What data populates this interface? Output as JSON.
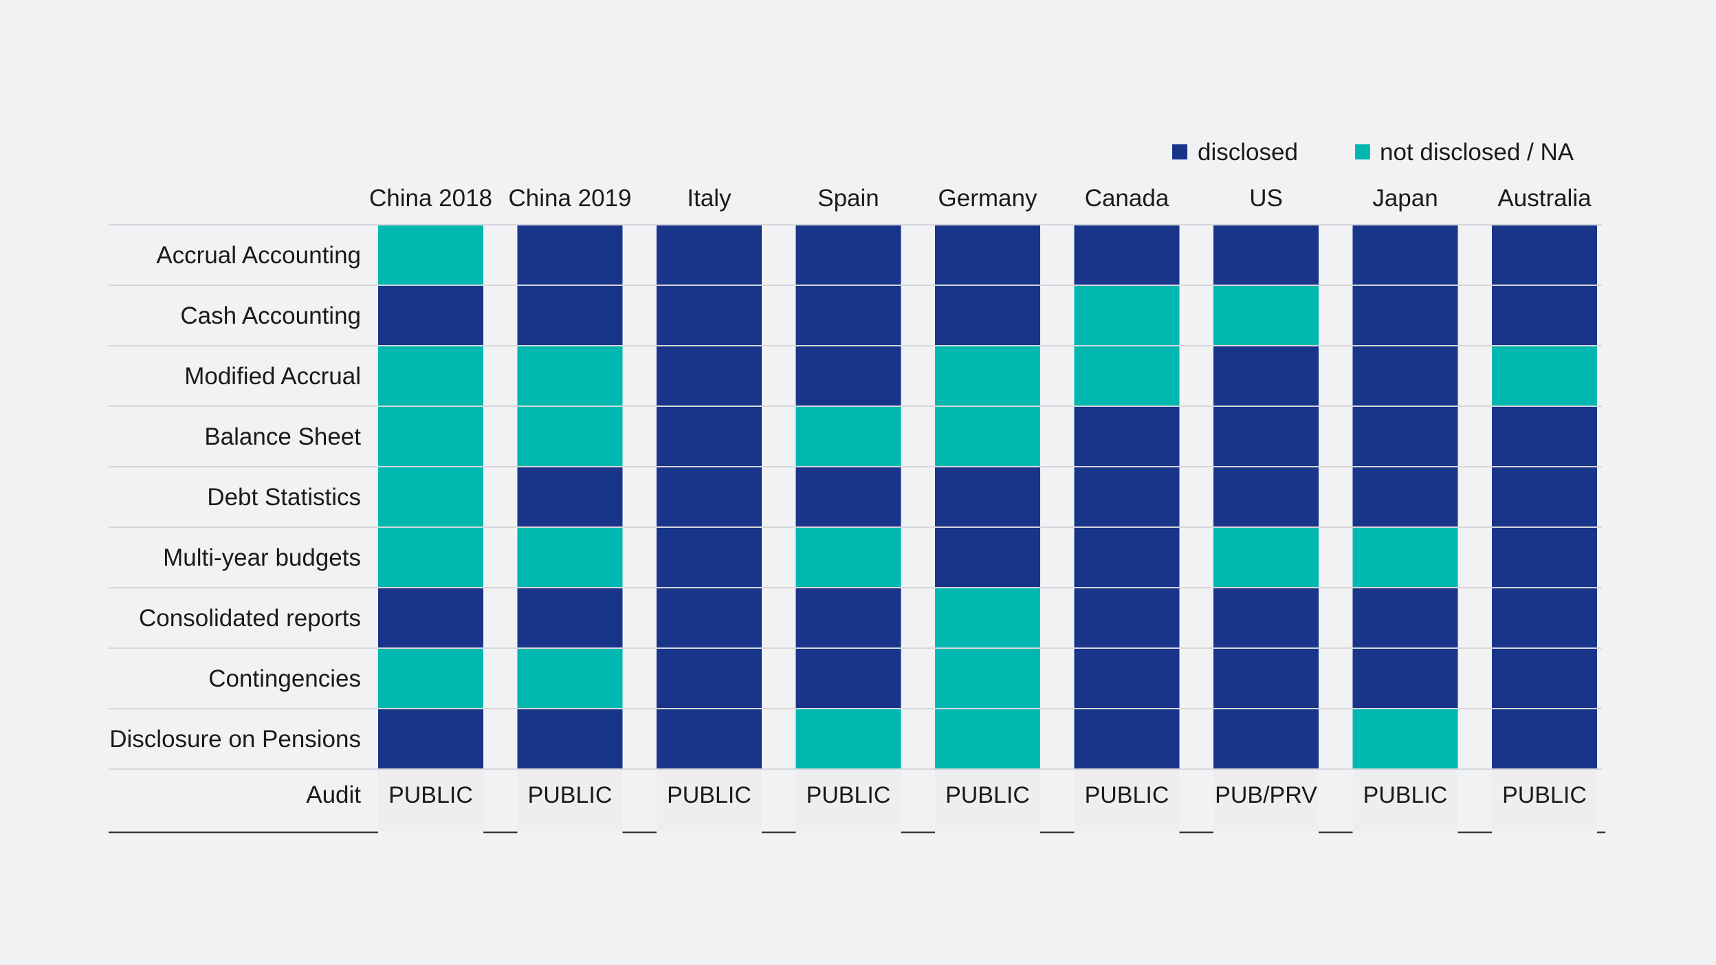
{
  "chart_data": {
    "type": "heatmap",
    "title": "",
    "legend": {
      "placement": "top-right",
      "entries": [
        {
          "key": "disclosed",
          "label": "disclosed",
          "color": "#18358a"
        },
        {
          "key": "not_disclosed",
          "label": "not disclosed / NA",
          "color": "#00b8b0"
        }
      ]
    },
    "columns": [
      "China 2018",
      "China 2019",
      "Italy",
      "Spain",
      "Germany",
      "Canada",
      "US",
      "Japan",
      "Australia"
    ],
    "rows": [
      {
        "label": "Accrual Accounting",
        "values": [
          0,
          1,
          1,
          1,
          1,
          1,
          1,
          1,
          1
        ]
      },
      {
        "label": "Cash Accounting",
        "values": [
          1,
          1,
          1,
          1,
          1,
          0,
          0,
          1,
          1
        ]
      },
      {
        "label": "Modified Accrual",
        "values": [
          0,
          0,
          1,
          1,
          0,
          0,
          1,
          1,
          0
        ]
      },
      {
        "label": "Balance Sheet",
        "values": [
          0,
          0,
          1,
          0,
          0,
          1,
          1,
          1,
          1
        ]
      },
      {
        "label": "Debt Statistics",
        "values": [
          0,
          1,
          1,
          1,
          1,
          1,
          1,
          1,
          1
        ]
      },
      {
        "label": "Multi-year budgets",
        "values": [
          0,
          0,
          1,
          0,
          1,
          1,
          0,
          0,
          1
        ]
      },
      {
        "label": "Consolidated reports",
        "values": [
          1,
          1,
          1,
          1,
          0,
          1,
          1,
          1,
          1
        ]
      },
      {
        "label": "Contingencies",
        "values": [
          0,
          0,
          1,
          1,
          0,
          1,
          1,
          1,
          1
        ]
      },
      {
        "label": "Disclosure on Pensions",
        "values": [
          1,
          1,
          1,
          0,
          0,
          1,
          1,
          0,
          1
        ]
      }
    ],
    "value_legend": {
      "1": "disclosed",
      "0": "not disclosed / NA"
    },
    "audit": {
      "label": "Audit",
      "values": [
        "PUBLIC",
        "PUBLIC",
        "PUBLIC",
        "PUBLIC",
        "PUBLIC",
        "PUBLIC",
        "PUB/PRV",
        "PUBLIC",
        "PUBLIC"
      ]
    },
    "colors": {
      "disclosed": "#18358a",
      "not_disclosed": "#00b8b0",
      "background": "#f1f2f4",
      "audit_cell": "#eeeef0",
      "rule": "#d6d7db",
      "baseline": "#3a3a3a",
      "text": "#1a1a1a"
    }
  }
}
